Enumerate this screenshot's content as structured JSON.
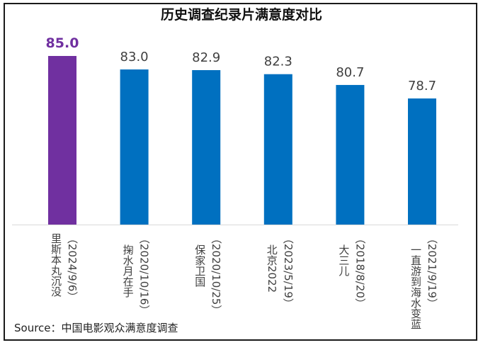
{
  "chart_data": {
    "type": "bar",
    "title": "历史调查纪录片满意度对比",
    "xlabel": "",
    "ylabel": "",
    "ylim": [
      60,
      85
    ],
    "grid": false,
    "legend": "none",
    "categories": [
      {
        "name": "里斯本丸沉没",
        "date": "（2024/9/6）"
      },
      {
        "name": "掬水月在手",
        "date": "（2020/10/16）"
      },
      {
        "name": "保家卫国",
        "date": "（2020/10/25）"
      },
      {
        "name": "北京2022",
        "date": "（2023/5/19）"
      },
      {
        "name": "大三儿",
        "date": "（2018/8/20）"
      },
      {
        "name": "一直游到海水变蓝",
        "date": "（2021/9/19）"
      }
    ],
    "values": [
      85.0,
      83.0,
      82.9,
      82.3,
      80.7,
      78.7
    ],
    "value_labels": [
      "85.0",
      "83.0",
      "82.9",
      "82.3",
      "80.7",
      "78.7"
    ],
    "highlight_index": 0,
    "colors": {
      "highlight": "#7030A0",
      "default": "#0070C0",
      "axis": "#D9D9D9",
      "label_text": "#404040"
    }
  },
  "footer": {
    "source": "Source：中国电影观众满意度调查"
  }
}
